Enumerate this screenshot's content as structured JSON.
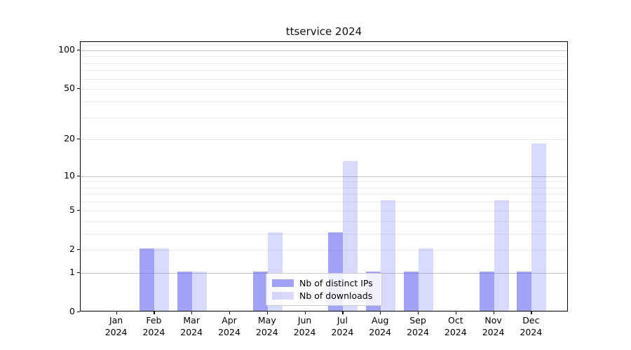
{
  "title": "ttservice 2024",
  "chart_data": {
    "type": "bar",
    "categories": [
      "Jan",
      "Feb",
      "Mar",
      "Apr",
      "May",
      "Jun",
      "Jul",
      "Aug",
      "Sep",
      "Oct",
      "Nov",
      "Dec"
    ],
    "year": "2024",
    "series": [
      {
        "name": "Nb of distinct IPs",
        "values": [
          0,
          2,
          1,
          0,
          1,
          0,
          3,
          1,
          1,
          0,
          1,
          1
        ],
        "color": "#6666ee",
        "alpha": 0.6
      },
      {
        "name": "Nb of downloads",
        "values": [
          0,
          2,
          1,
          0,
          3,
          0,
          13,
          6,
          2,
          0,
          6,
          18
        ],
        "color": "#6666ee",
        "alpha": 0.25
      }
    ],
    "y_axis": {
      "scale": "symlog (position proportional to log10(1+v))",
      "tick_labels": [
        "0",
        "1",
        "2",
        "5",
        "10",
        "20",
        "50",
        "100"
      ],
      "tick_values": [
        0,
        1,
        2,
        5,
        10,
        20,
        50,
        100
      ],
      "major_gridlines": [
        1,
        10,
        100
      ],
      "minor_gridlines": [
        2,
        3,
        4,
        5,
        6,
        7,
        8,
        9,
        20,
        30,
        40,
        50,
        60,
        70,
        80,
        90,
        110
      ],
      "ylim": [
        0,
        115
      ]
    },
    "legend": {
      "entries": [
        "Nb of distinct IPs",
        "Nb of downloads"
      ],
      "position": "lower-center"
    },
    "grid": true
  },
  "colors": {
    "bar_base": "#6666ee",
    "ips_bar_effective": "#a3a3f5",
    "downloads_bar_effective": "#d9d9fa",
    "major_gridline": "#c4c4c4",
    "minor_gridline": "#ececec",
    "axis": "#000000",
    "background": "#ffffff"
  }
}
